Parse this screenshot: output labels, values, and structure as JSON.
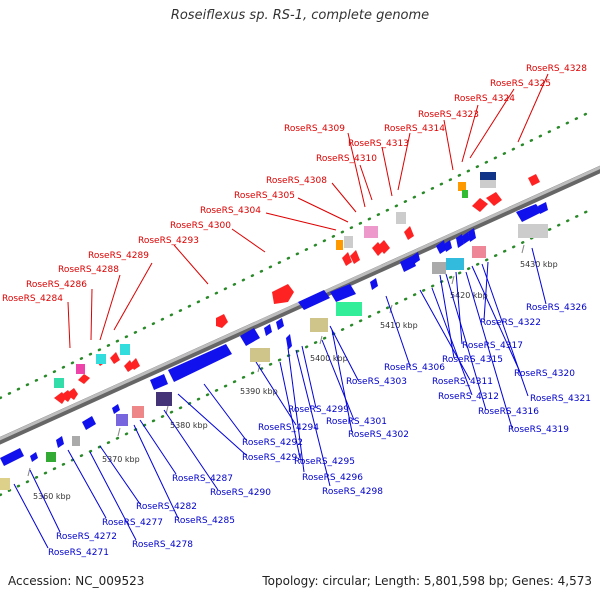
{
  "title": "Roseiflexus sp. RS-1, complete genome",
  "footer": {
    "accession": "Accession: NC_009523",
    "summary": "Topology: circular; Length: 5,801,598 bp; Genes: 4,573"
  },
  "colors": {
    "label_red": "#dd0000",
    "label_blue": "#0000cc",
    "backbone": "#888888",
    "tick": "#2a8a2a"
  },
  "ruler": [
    "5360 kbp",
    "5370 kbp",
    "5380 kbp",
    "5390 kbp",
    "5400 kbp",
    "5410 kbp",
    "5420 kbp",
    "5430 kbp"
  ],
  "labels_top": [
    "RoseRS_4284",
    "RoseRS_4286",
    "RoseRS_4288",
    "RoseRS_4289",
    "RoseRS_4293",
    "RoseRS_4300",
    "RoseRS_4304",
    "RoseRS_4305",
    "RoseRS_4308",
    "RoseRS_4310",
    "RoseRS_4309",
    "RoseRS_4313",
    "RoseRS_4314",
    "RoseRS_4323",
    "RoseRS_4324",
    "RoseRS_4325",
    "RoseRS_4328"
  ],
  "labels_bottom": [
    "RoseRS_4271",
    "RoseRS_4272",
    "RoseRS_4277",
    "RoseRS_4278",
    "RoseRS_4282",
    "RoseRS_4285",
    "RoseRS_4287",
    "RoseRS_4290",
    "RoseRS_4291",
    "RoseRS_4292",
    "RoseRS_4294",
    "RoseRS_4295",
    "RoseRS_4296",
    "RoseRS_4298",
    "RoseRS_4299",
    "RoseRS_4301",
    "RoseRS_4302",
    "RoseRS_4303",
    "RoseRS_4306",
    "RoseRS_4311",
    "RoseRS_4312",
    "RoseRS_4315",
    "RoseRS_4316",
    "RoseRS_4317",
    "RoseRS_4319",
    "RoseRS_4320",
    "RoseRS_4321",
    "RoseRS_4322",
    "RoseRS_4326"
  ]
}
